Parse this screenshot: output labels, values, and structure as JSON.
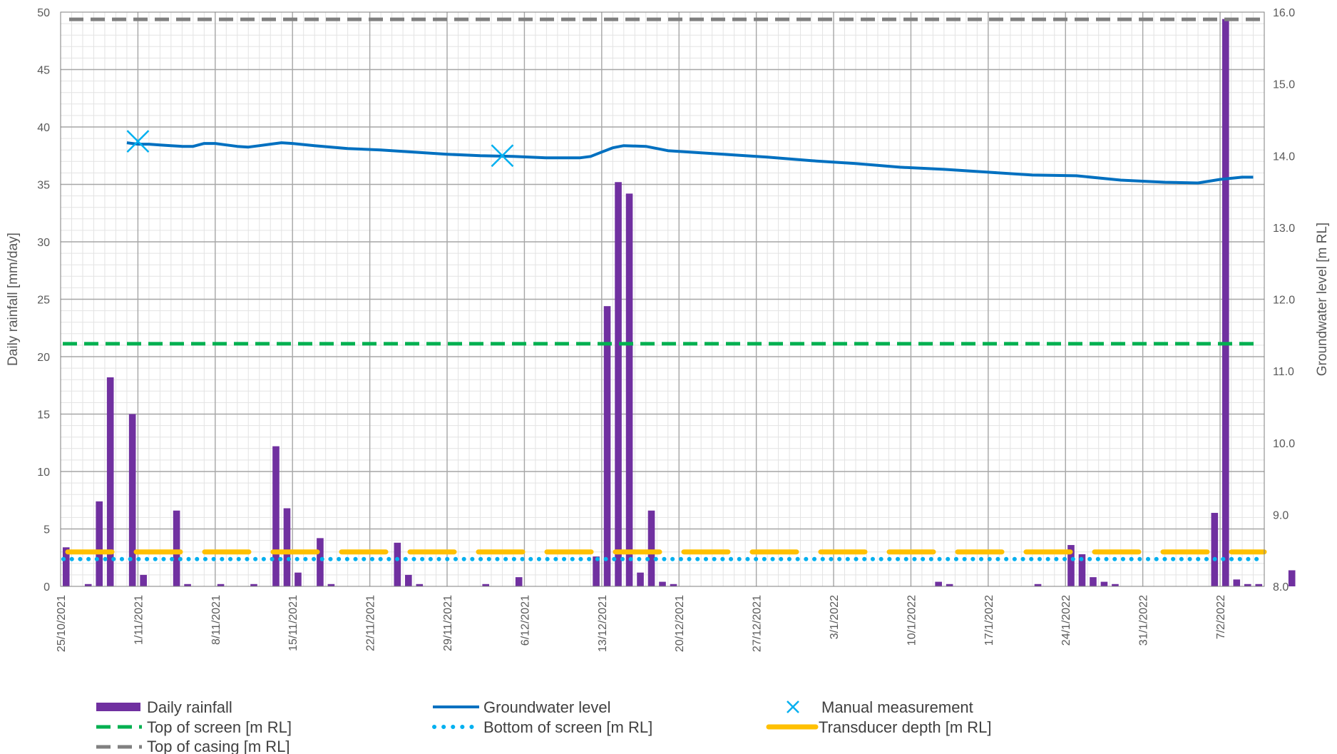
{
  "chart_data": {
    "type": "bar",
    "title": "",
    "ylabel_left": "Daily rainfall [mm/day]",
    "ylabel_right": "Groundwater level [m RL]",
    "xlim_dates": [
      "2021-10-25",
      "2022-02-11"
    ],
    "ylim_left": [
      0,
      50
    ],
    "ylim_right": [
      8.0,
      16.0
    ],
    "left_ticks": [
      "0",
      "5",
      "10",
      "15",
      "20",
      "25",
      "30",
      "35",
      "40",
      "45",
      "50"
    ],
    "right_ticks": [
      "8.0",
      "9.0",
      "10.0",
      "11.0",
      "12.0",
      "13.0",
      "14.0",
      "15.0",
      "16.0"
    ],
    "x_tick_labels": [
      "25/10/2021",
      "1/11/2021",
      "8/11/2021",
      "15/11/2021",
      "22/11/2021",
      "29/11/2021",
      "6/12/2021",
      "13/12/2021",
      "20/12/2021",
      "27/12/2021",
      "3/1/2022",
      "10/1/2022",
      "17/1/2022",
      "24/1/2022",
      "31/1/2022",
      "7/2/2022"
    ],
    "grid": true,
    "legend_position": "bottom",
    "colors": {
      "rainfall": "#7030A0",
      "groundwater": "#0070C0",
      "manual": "#00B0F0",
      "top_screen": "#00B050",
      "bottom_screen": "#00B0F0",
      "transducer": "#FFC000",
      "top_casing": "#808080"
    },
    "series": [
      {
        "name": "Daily rainfall",
        "type": "bar",
        "axis": "left",
        "points": [
          [
            "2021-10-25",
            3.4
          ],
          [
            "2021-10-27",
            0.2
          ],
          [
            "2021-10-28",
            7.4
          ],
          [
            "2021-10-29",
            18.2
          ],
          [
            "2021-10-31",
            15.0
          ],
          [
            "2021-11-01",
            1.0
          ],
          [
            "2021-11-04",
            6.6
          ],
          [
            "2021-11-05",
            0.2
          ],
          [
            "2021-11-08",
            0.2
          ],
          [
            "2021-11-11",
            0.2
          ],
          [
            "2021-11-13",
            12.2
          ],
          [
            "2021-11-14",
            6.8
          ],
          [
            "2021-11-15",
            1.2
          ],
          [
            "2021-11-17",
            4.2
          ],
          [
            "2021-11-18",
            0.2
          ],
          [
            "2021-11-24",
            3.8
          ],
          [
            "2021-11-25",
            1.0
          ],
          [
            "2021-11-26",
            0.2
          ],
          [
            "2021-12-02",
            0.2
          ],
          [
            "2021-12-05",
            0.8
          ],
          [
            "2021-12-12",
            2.6
          ],
          [
            "2021-12-13",
            24.4
          ],
          [
            "2021-12-14",
            35.2
          ],
          [
            "2021-12-15",
            34.2
          ],
          [
            "2021-12-16",
            1.2
          ],
          [
            "2021-12-17",
            6.6
          ],
          [
            "2021-12-18",
            0.4
          ],
          [
            "2021-12-19",
            0.2
          ],
          [
            "2022-01-12",
            0.4
          ],
          [
            "2022-01-13",
            0.2
          ],
          [
            "2022-01-21",
            0.2
          ],
          [
            "2022-01-24",
            3.6
          ],
          [
            "2022-01-25",
            2.8
          ],
          [
            "2022-01-26",
            0.8
          ],
          [
            "2022-01-27",
            0.4
          ],
          [
            "2022-01-28",
            0.2
          ],
          [
            "2022-02-06",
            6.4
          ],
          [
            "2022-02-07",
            49.4
          ],
          [
            "2022-02-08",
            0.6
          ],
          [
            "2022-02-09",
            0.2
          ],
          [
            "2022-02-10",
            0.2
          ],
          [
            "2022-02-13",
            1.4
          ]
        ]
      },
      {
        "name": "Groundwater level",
        "type": "line",
        "axis": "right",
        "points": [
          [
            "2021-10-31",
            14.18
          ],
          [
            "2021-11-01",
            14.16
          ],
          [
            "2021-11-02",
            14.16
          ],
          [
            "2021-11-03",
            14.15
          ],
          [
            "2021-11-04",
            14.14
          ],
          [
            "2021-11-05",
            14.13
          ],
          [
            "2021-11-06",
            14.13
          ],
          [
            "2021-11-07",
            14.17
          ],
          [
            "2021-11-08",
            14.17
          ],
          [
            "2021-11-09",
            14.15
          ],
          [
            "2021-11-10",
            14.13
          ],
          [
            "2021-11-11",
            14.12
          ],
          [
            "2021-11-12",
            14.14
          ],
          [
            "2021-11-13",
            14.16
          ],
          [
            "2021-11-14",
            14.18
          ],
          [
            "2021-11-15",
            14.17
          ],
          [
            "2021-11-17",
            14.14
          ],
          [
            "2021-11-20",
            14.1
          ],
          [
            "2021-11-23",
            14.08
          ],
          [
            "2021-11-26",
            14.05
          ],
          [
            "2021-11-29",
            14.02
          ],
          [
            "2021-12-02",
            14.0
          ],
          [
            "2021-12-05",
            13.99
          ],
          [
            "2021-12-08",
            13.97
          ],
          [
            "2021-12-11",
            13.97
          ],
          [
            "2021-12-12",
            13.99
          ],
          [
            "2021-12-13",
            14.05
          ],
          [
            "2021-12-14",
            14.11
          ],
          [
            "2021-12-15",
            14.14
          ],
          [
            "2021-12-17",
            14.13
          ],
          [
            "2021-12-19",
            14.07
          ],
          [
            "2021-12-22",
            14.04
          ],
          [
            "2021-12-25",
            14.01
          ],
          [
            "2021-12-28",
            13.98
          ],
          [
            "2022-01-01",
            13.93
          ],
          [
            "2022-01-05",
            13.89
          ],
          [
            "2022-01-09",
            13.84
          ],
          [
            "2022-01-13",
            13.81
          ],
          [
            "2022-01-17",
            13.77
          ],
          [
            "2022-01-21",
            13.73
          ],
          [
            "2022-01-25",
            13.72
          ],
          [
            "2022-01-29",
            13.66
          ],
          [
            "2022-02-02",
            13.63
          ],
          [
            "2022-02-05",
            13.62
          ],
          [
            "2022-02-07",
            13.67
          ],
          [
            "2022-02-09",
            13.7
          ],
          [
            "2022-02-10",
            13.7
          ]
        ]
      },
      {
        "name": "Manual measurement",
        "type": "scatter",
        "axis": "right",
        "points": [
          [
            "2021-11-01",
            14.2
          ],
          [
            "2021-12-04",
            14.0
          ]
        ]
      },
      {
        "name": "Top of screen [m RL]",
        "type": "hline",
        "axis": "right",
        "value": 11.38
      },
      {
        "name": "Bottom of screen [m RL]",
        "type": "hline",
        "axis": "right",
        "value": 8.38
      },
      {
        "name": "Transducer depth [m RL]",
        "type": "hline",
        "axis": "right",
        "value": 8.48
      },
      {
        "name": "Top of casing [m RL]",
        "type": "hline",
        "axis": "right",
        "value": 15.9
      }
    ]
  }
}
